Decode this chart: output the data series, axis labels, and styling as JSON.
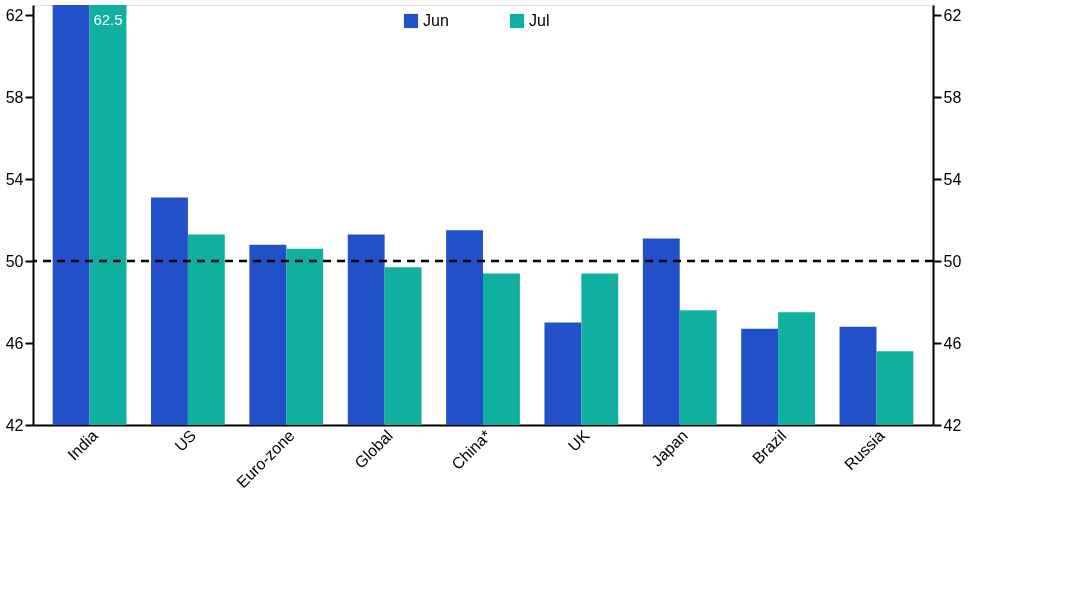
{
  "chart_data": {
    "type": "bar",
    "categories": [
      "India",
      "US",
      "Euro-zone",
      "Global",
      "China*",
      "UK",
      "Japan",
      "Brazil",
      "Russia"
    ],
    "series": [
      {
        "name": "Jun",
        "color": "#2150c8",
        "values": [
          62.5,
          53.1,
          50.8,
          51.3,
          51.5,
          47.0,
          51.1,
          46.7,
          46.8
        ]
      },
      {
        "name": "Jul",
        "color": "#10b0a0",
        "values": [
          62.5,
          51.3,
          50.6,
          49.7,
          49.4,
          49.4,
          47.6,
          47.5,
          45.6
        ],
        "value_labels": [
          "62.5",
          null,
          null,
          null,
          null,
          null,
          null,
          null,
          null
        ]
      }
    ],
    "ylim": [
      42,
      62.5
    ],
    "yticks": [
      42,
      46,
      50,
      54,
      58,
      62
    ],
    "y2lim": [
      42,
      62.5
    ],
    "y2ticks": [
      42,
      46,
      50,
      54,
      58,
      62
    ],
    "ref_lines": [
      {
        "axis": "y",
        "value": 50,
        "line_style": "dashed",
        "color": "#000000"
      }
    ],
    "legend": "top",
    "grid": false
  }
}
